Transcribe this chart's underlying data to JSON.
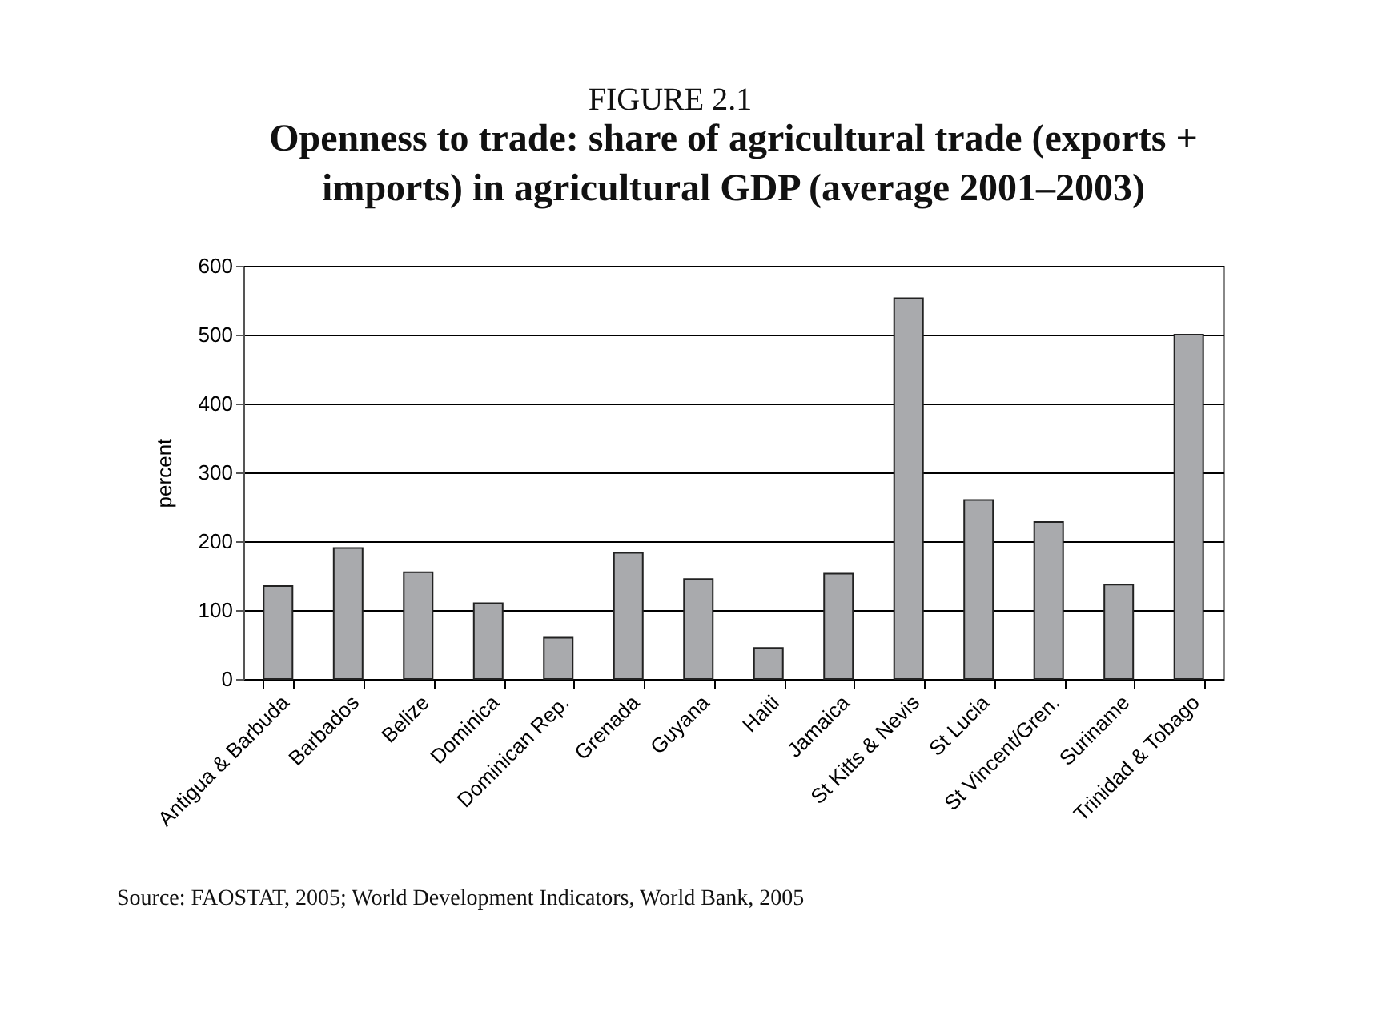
{
  "chart_data": {
    "type": "bar",
    "subtitle": "FIGURE 2.1",
    "title": "Openness to trade: share of agricultural trade (exports + imports) in agricultural GDP (average 2001–2003)",
    "ylabel": "percent",
    "categories": [
      "Antigua & Barbuda",
      "Barbados",
      "Belize",
      "Dominica",
      "Dominican Rep.",
      "Grenada",
      "Guyana",
      "Haiti",
      "Jamaica",
      "St Kitts & Nevis",
      "St Lucia",
      "St Vincent/Gren.",
      "Suriname",
      "Trinidad & Tobago"
    ],
    "values": [
      135,
      190,
      155,
      110,
      60,
      183,
      145,
      45,
      153,
      553,
      260,
      228,
      137,
      500
    ],
    "color": "#a9aaad",
    "ylim": [
      0,
      600
    ],
    "yticks": [
      0,
      100,
      200,
      300,
      400,
      500,
      600
    ],
    "grid": "y",
    "annotations": [
      "Source: FAOSTAT, 2005; World Development Indicators, World Bank, 2005"
    ]
  }
}
